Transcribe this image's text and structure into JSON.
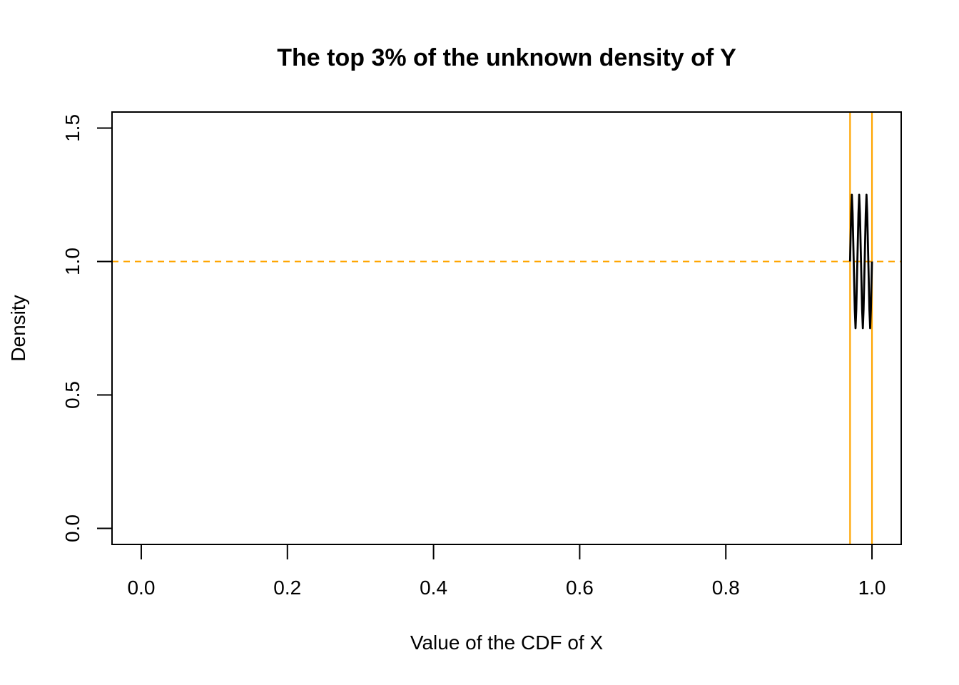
{
  "chart_data": {
    "type": "line",
    "title": "The top 3% of the unknown density of Y",
    "xlabel": "Value of the CDF of X",
    "ylabel": "Density",
    "xlim": [
      -0.04,
      1.04
    ],
    "ylim": [
      -0.06,
      1.56
    ],
    "x_ticks": [
      0.0,
      0.2,
      0.4,
      0.6,
      0.8,
      1.0
    ],
    "x_tick_labels": [
      "0.0",
      "0.2",
      "0.4",
      "0.6",
      "0.8",
      "1.0"
    ],
    "y_ticks": [
      0.0,
      0.5,
      1.0,
      1.5
    ],
    "y_tick_labels": [
      "0.0",
      "0.5",
      "1.0",
      "1.5"
    ],
    "grid": false,
    "series": [
      {
        "x": [
          0.97,
          0.9715,
          0.9725,
          0.9735,
          0.975,
          0.9765,
          0.9775,
          0.9785,
          0.98,
          0.9815,
          0.9825,
          0.9835,
          0.985,
          0.9865,
          0.9875,
          0.9885,
          0.99,
          0.9915,
          0.9925,
          0.9935,
          0.995,
          0.9965,
          0.9975,
          0.9985,
          1.0
        ],
        "y": [
          1.0,
          1.18,
          1.25,
          1.18,
          1.0,
          0.82,
          0.75,
          0.82,
          1.0,
          1.18,
          1.25,
          1.18,
          1.0,
          0.82,
          0.75,
          0.82,
          1.0,
          1.18,
          1.25,
          1.18,
          1.0,
          0.82,
          0.75,
          0.82,
          1.0
        ],
        "color": "#000000"
      }
    ],
    "reference_lines": {
      "horizontal": [
        {
          "y": 1.0,
          "style": "dashed",
          "color": "#FFA500"
        }
      ],
      "vertical": [
        {
          "x": 0.97,
          "style": "solid",
          "color": "#FFA500"
        },
        {
          "x": 1.0,
          "style": "solid",
          "color": "#FFA500"
        }
      ]
    }
  }
}
